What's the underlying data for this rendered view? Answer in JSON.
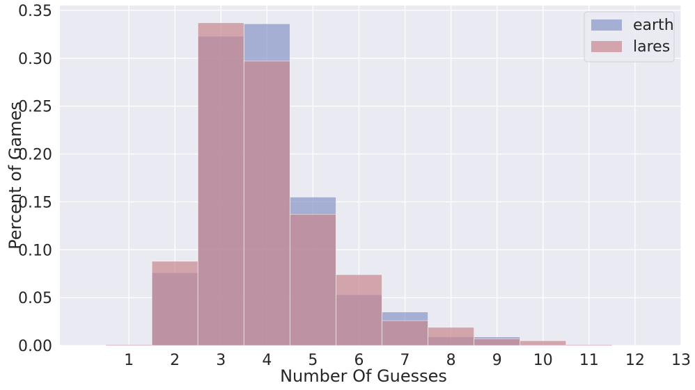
{
  "chart_data": {
    "type": "bar",
    "subtype": "overlapping-histogram",
    "title": "",
    "xlabel": "Number Of Guesses",
    "ylabel": "Percent of Games",
    "x_ticks": [
      "1",
      "2",
      "3",
      "4",
      "5",
      "6",
      "7",
      "8",
      "9",
      "10",
      "11",
      "12",
      "13"
    ],
    "y_ticks": [
      "0.00",
      "0.05",
      "0.10",
      "0.15",
      "0.20",
      "0.25",
      "0.30",
      "0.35"
    ],
    "xlim": [
      -0.5,
      13
    ],
    "ylim": [
      0,
      0.355
    ],
    "grid": true,
    "legend_position": "top-right",
    "bin_width": 1,
    "categories": [
      1,
      2,
      3,
      4,
      5,
      6,
      7,
      8,
      9,
      10,
      11
    ],
    "series": [
      {
        "name": "earth",
        "color": "#8896c8",
        "values": [
          0.0005,
          0.076,
          0.323,
          0.336,
          0.155,
          0.053,
          0.035,
          0.009,
          0.009,
          0.0,
          0.0
        ]
      },
      {
        "name": "lares",
        "color": "#c8868e",
        "values": [
          0.001,
          0.088,
          0.337,
          0.297,
          0.137,
          0.074,
          0.026,
          0.019,
          0.007,
          0.005,
          0.001
        ]
      }
    ],
    "background_color": "#eaeaf2",
    "grid_color": "#ffffff",
    "overlap_color": "#9a7a8d"
  }
}
